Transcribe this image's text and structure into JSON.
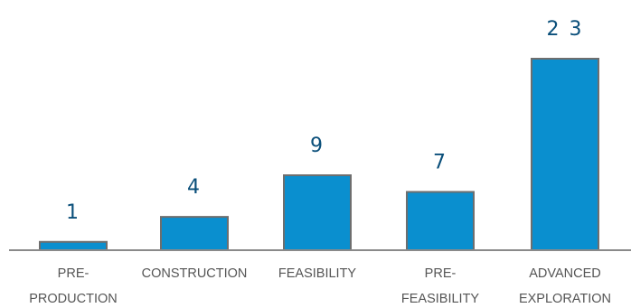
{
  "chart_data": {
    "type": "bar",
    "categories": [
      [
        "PRE-",
        "PRODUCTION"
      ],
      [
        "CONSTRUCTION"
      ],
      [
        "FEASIBILITY"
      ],
      [
        "PRE-",
        "FEASIBILITY"
      ],
      [
        "ADVANCED",
        "EXPLORATION"
      ]
    ],
    "values": [
      1,
      4,
      9,
      7,
      23
    ],
    "data_labels": [
      "1",
      "4",
      "9",
      "7",
      "2 3"
    ],
    "ylim": [
      0,
      23
    ],
    "grid": false,
    "legend": "none",
    "colors": {
      "bar_fill": "#0a8fcf",
      "bar_stroke": "#6e6e6e",
      "axis": "#8a8a8a",
      "value_text": "#0a4f7a",
      "category_text": "#555555"
    }
  }
}
